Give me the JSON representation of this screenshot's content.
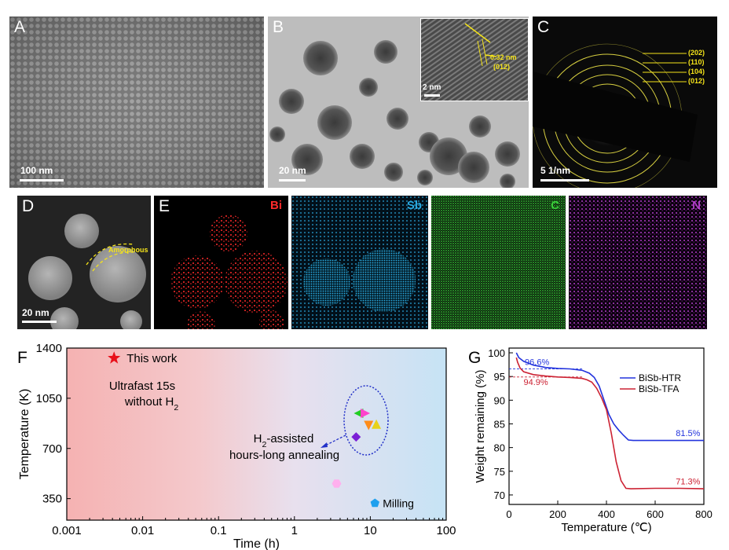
{
  "panels": {
    "A": {
      "label": "A",
      "scale": "100 nm"
    },
    "B": {
      "label": "B",
      "scale": "20 nm",
      "inset_scale": "2 nm",
      "d_spacing": "0.32 nm",
      "plane": "(012)"
    },
    "C": {
      "label": "C",
      "scale": "5 1/nm",
      "rings": [
        "(202)",
        "(110)",
        "(104)",
        "(012)"
      ]
    },
    "D": {
      "label": "D",
      "scale": "20 nm",
      "annotation": "Amorphous"
    },
    "E": {
      "label": "E",
      "elements": [
        {
          "symbol": "Bi",
          "color": "#ff2a2a"
        },
        {
          "symbol": "Sb",
          "color": "#2aa9e0"
        },
        {
          "symbol": "C",
          "color": "#3ad13a"
        },
        {
          "symbol": "N",
          "color": "#b13ec9"
        }
      ]
    }
  },
  "chart_F": {
    "label": "F",
    "type": "scatter",
    "xlabel": "Time (h)",
    "ylabel": "Temperature (K)",
    "xscale": "log",
    "xlim": [
      0.001,
      100
    ],
    "ylim": [
      200,
      1400
    ],
    "xticks": [
      "0.001",
      "0.01",
      "0.1",
      "1",
      "10",
      "100"
    ],
    "yticks": [
      "350",
      "700",
      "1050",
      "1400"
    ],
    "this_work": {
      "label": "This work",
      "note1": "Ultrafast 15s",
      "note2_pre": "without H",
      "note2_sub": "2",
      "x": 0.0042,
      "y": 1330
    },
    "group_note": {
      "line1_pre": "H",
      "line1_sub": "2",
      "line1_post": "-assisted",
      "line2": "hours-long annealing"
    },
    "milling_label": "Milling",
    "points": [
      {
        "marker": "triangle-left",
        "color": "#22cc22",
        "x": 7,
        "y": 945
      },
      {
        "marker": "triangle-right",
        "color": "#ff44cc",
        "x": 8.6,
        "y": 945
      },
      {
        "marker": "triangle-down",
        "color": "#ff8c1a",
        "x": 9.5,
        "y": 860
      },
      {
        "marker": "triangle-up",
        "color": "#e8d21a",
        "x": 12,
        "y": 870
      },
      {
        "marker": "diamond",
        "color": "#7b1fd6",
        "x": 6.5,
        "y": 780
      },
      {
        "marker": "hexagon",
        "color": "#ffb0ee",
        "x": 3.6,
        "y": 455
      },
      {
        "marker": "pentagon",
        "color": "#1fa0ee",
        "x": 11.5,
        "y": 318
      }
    ]
  },
  "chart_G": {
    "label": "G",
    "type": "line",
    "xlabel": "Temperature (℃)",
    "ylabel": "Weight remaining (%)",
    "xlim": [
      0,
      800
    ],
    "ylim": [
      68,
      101
    ],
    "xticks": [
      "0",
      "200",
      "400",
      "600",
      "800"
    ],
    "yticks": [
      "70",
      "75",
      "80",
      "85",
      "90",
      "95",
      "100"
    ],
    "annotations": [
      {
        "text": "96.6%",
        "color": "#2233dd",
        "x": 115,
        "y": 97.4
      },
      {
        "text": "94.9%",
        "color": "#cc2233",
        "x": 110,
        "y": 93.2
      },
      {
        "text": "81.5%",
        "color": "#2233dd",
        "x": 735,
        "y": 82.4
      },
      {
        "text": "71.3%",
        "color": "#cc2233",
        "x": 735,
        "y": 72.2
      }
    ],
    "series": [
      {
        "name": "BiSb-HTR",
        "color": "#2233dd",
        "x": [
          30,
          40,
          60,
          100,
          150,
          200,
          250,
          300,
          330,
          350,
          370,
          390,
          410,
          430,
          450,
          470,
          490,
          510,
          600,
          700,
          800
        ],
        "y": [
          100,
          99,
          98.2,
          97.4,
          96.9,
          96.7,
          96.6,
          96.3,
          95.7,
          94.8,
          93,
          90,
          87,
          85,
          83.7,
          82.6,
          81.6,
          81.5,
          81.5,
          81.5,
          81.5
        ]
      },
      {
        "name": "BiSb-TFA",
        "color": "#cc2233",
        "x": [
          30,
          35,
          45,
          60,
          100,
          150,
          200,
          250,
          300,
          320,
          340,
          360,
          380,
          400,
          420,
          440,
          460,
          480,
          500,
          600,
          700,
          800
        ],
        "y": [
          99,
          98,
          96.8,
          96,
          95.4,
          95.1,
          94.9,
          94.8,
          94.6,
          94.3,
          93.8,
          92.5,
          90.5,
          88,
          83,
          77,
          73,
          71.4,
          71.3,
          71.4,
          71.4,
          71.3
        ]
      }
    ],
    "ref_lines": [
      96.6,
      94.9
    ]
  }
}
